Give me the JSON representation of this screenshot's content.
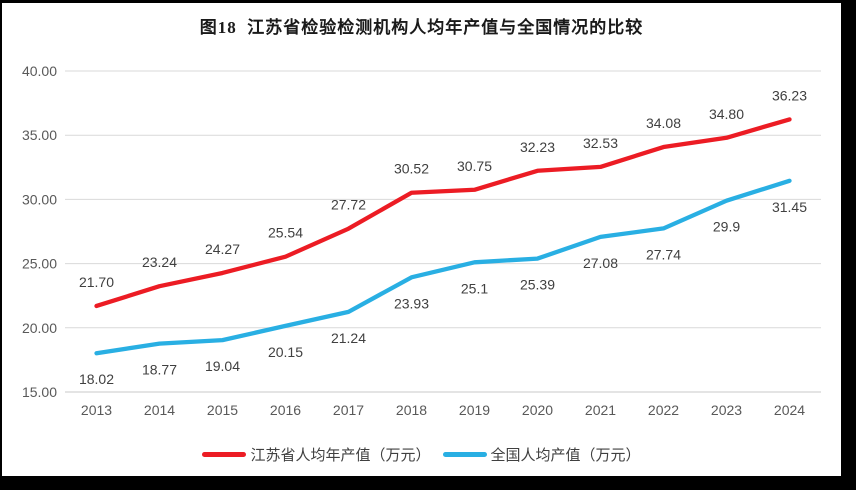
{
  "chart_data": {
    "type": "line",
    "title": "图18  江苏省检验检测机构人均年产值与全国情况的比较",
    "categories": [
      "2013",
      "2014",
      "2015",
      "2016",
      "2017",
      "2018",
      "2019",
      "2020",
      "2021",
      "2022",
      "2023",
      "2024"
    ],
    "series": [
      {
        "key": "jiangsu",
        "name": "江苏省人均年产值（万元）",
        "color": "#EC1C24",
        "values": [
          21.7,
          23.24,
          24.27,
          25.54,
          27.72,
          30.52,
          30.75,
          32.23,
          32.53,
          34.08,
          34.8,
          36.23
        ],
        "labels": [
          "21.70",
          "23.24",
          "24.27",
          "25.54",
          "27.72",
          "30.52",
          "30.75",
          "32.23",
          "32.53",
          "34.08",
          "34.80",
          "36.23"
        ],
        "label_position": "above"
      },
      {
        "key": "national",
        "name": "全国人均产值（万元）",
        "color": "#29AFE3",
        "values": [
          18.02,
          18.77,
          19.04,
          20.15,
          21.24,
          23.93,
          25.1,
          25.39,
          27.08,
          27.74,
          29.9,
          31.45
        ],
        "labels": [
          "18.02",
          "18.77",
          "19.04",
          "20.15",
          "21.24",
          "23.93",
          "25.1",
          "25.39",
          "27.08",
          "27.74",
          "29.9",
          "31.45"
        ],
        "label_position": "below"
      }
    ],
    "ylim": [
      15,
      40
    ],
    "ytick_step": 5,
    "ytick_labels": [
      "15.00",
      "20.00",
      "25.00",
      "30.00",
      "35.00",
      "40.00"
    ],
    "grid": true,
    "legend_position": "bottom"
  },
  "colors": {
    "grid": "#D9D9D9",
    "axis_line": "#C8C8C8",
    "axis_text": "#595959",
    "data_label_text": "#404040",
    "title_text": "#1A1A1A",
    "legend_text": "#404040",
    "frame_border": "#000000",
    "background": "#FFFFFF"
  }
}
